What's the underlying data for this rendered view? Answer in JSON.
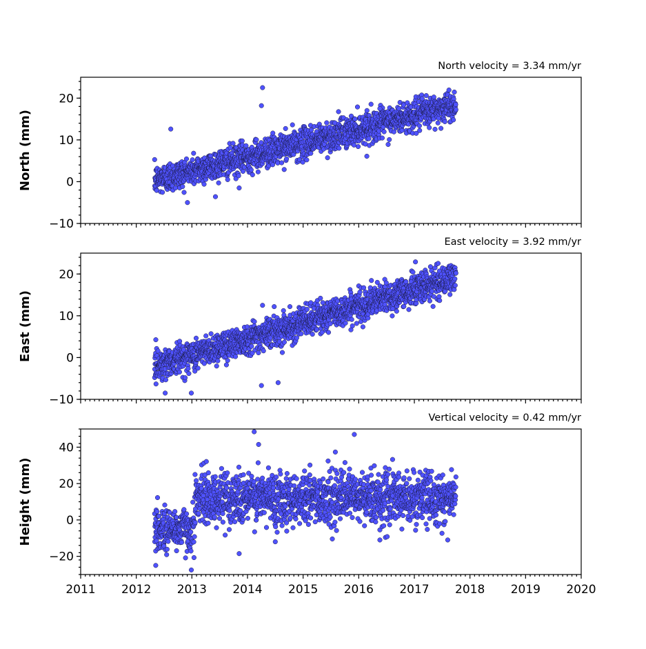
{
  "chart_data": [
    {
      "type": "scatter",
      "title": "North velocity = 3.34 mm/yr",
      "ylabel": "North (mm)",
      "xlabel": "",
      "xlim": [
        2011,
        2020
      ],
      "ylim": [
        -10,
        25
      ],
      "yticks": [
        -10,
        0,
        10,
        20
      ],
      "ytick_labels": [
        "−10",
        "0",
        "10",
        "20"
      ],
      "series": [
        {
          "color": "#4f52ff",
          "time_range": [
            2012.33,
            2017.75
          ],
          "start_value": 0.3,
          "velocity_mm_per_yr": 3.34,
          "scatter_mm": 1.8,
          "outliers": [
            [
              2014.27,
              22.5
            ],
            [
              2014.25,
              18.2
            ],
            [
              2012.62,
              12.6
            ],
            [
              2016.38,
              17.5
            ],
            [
              2013.85,
              -1.5
            ]
          ]
        }
      ]
    },
    {
      "type": "scatter",
      "title": "East velocity = 3.92 mm/yr",
      "ylabel": "East (mm)",
      "xlabel": "",
      "xlim": [
        2011,
        2020
      ],
      "ylim": [
        -10,
        25
      ],
      "yticks": [
        -10,
        0,
        10,
        20
      ],
      "ytick_labels": [
        "−10",
        "0",
        "10",
        "20"
      ],
      "series": [
        {
          "color": "#4f52ff",
          "time_range": [
            2012.33,
            2017.75
          ],
          "start_value": -2.0,
          "velocity_mm_per_yr": 3.92,
          "scatter_mm": 1.8,
          "outliers": [
            [
              2017.02,
              22.9
            ],
            [
              2014.27,
              12.5
            ],
            [
              2012.52,
              -8.5
            ],
            [
              2012.99,
              -8.5
            ],
            [
              2014.55,
              -6.0
            ],
            [
              2014.25,
              -6.7
            ]
          ]
        }
      ]
    },
    {
      "type": "scatter",
      "title": "Vertical velocity = 0.42 mm/yr",
      "ylabel": "Height (mm)",
      "xlabel": "",
      "xlim": [
        2011,
        2020
      ],
      "ylim": [
        -30,
        50
      ],
      "yticks": [
        -20,
        0,
        20,
        40
      ],
      "ytick_labels": [
        "−20",
        "0",
        "20",
        "40"
      ],
      "xticks": [
        2011,
        2012,
        2013,
        2014,
        2015,
        2016,
        2017,
        2018,
        2019,
        2020
      ],
      "xtick_labels": [
        "2011",
        "2012",
        "2013",
        "2014",
        "2015",
        "2016",
        "2017",
        "2018",
        "2019",
        "2020"
      ],
      "series": [
        {
          "color": "#4f52ff",
          "segments": [
            {
              "time_range": [
                2012.33,
                2013.05
              ],
              "mean_mm": -5,
              "scatter_mm": 6
            },
            {
              "time_range": [
                2013.05,
                2017.75
              ],
              "mean_mm": 12,
              "scatter_mm": 7
            }
          ],
          "outliers": [
            [
              2014.12,
              48.5
            ],
            [
              2015.92,
              47.0
            ],
            [
              2014.2,
              41.5
            ],
            [
              2012.99,
              -27.5
            ],
            [
              2012.35,
              -25
            ],
            [
              2013.85,
              -18.5
            ],
            [
              2014.5,
              -12
            ],
            [
              2016.38,
              -11
            ],
            [
              2017.6,
              -11
            ]
          ]
        }
      ]
    }
  ]
}
